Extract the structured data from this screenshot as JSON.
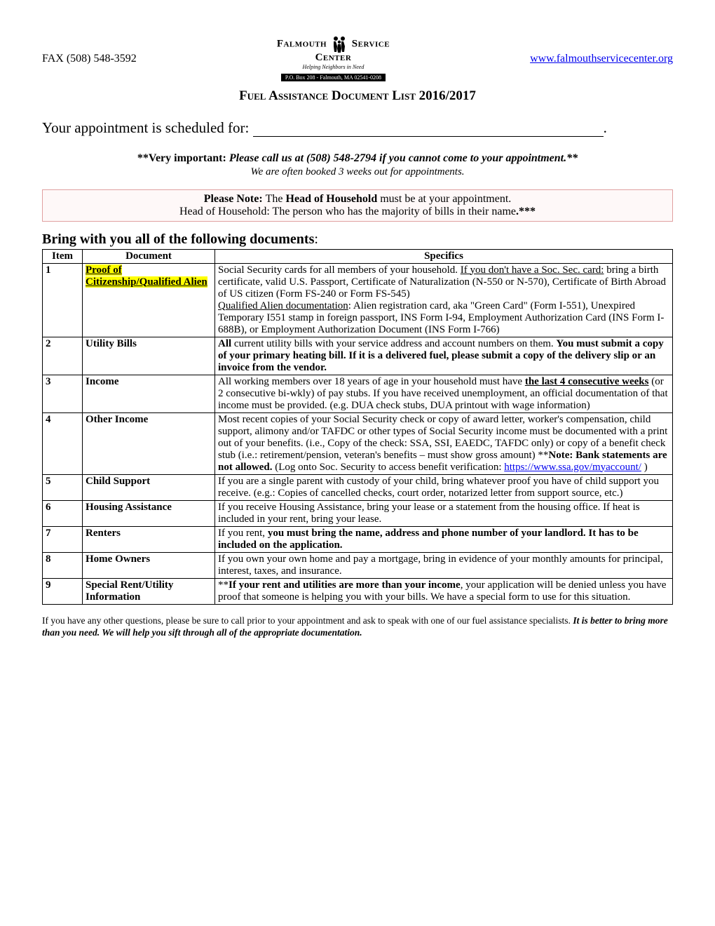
{
  "header": {
    "fax": "FAX (508) 548-3592",
    "website_url": "www.falmouthservicecenter.org",
    "logo_top": "Falmouth",
    "logo_right": "Service",
    "logo_center": "Center",
    "logo_tagline": "Helping Neighbors in Need",
    "logo_address": "P.O. Box 208 - Falmouth, MA 02541-0208"
  },
  "title": "Fuel Assistance Document List 2016/2017",
  "appointment": {
    "label": "Your appointment is scheduled for: "
  },
  "important": {
    "prefix": "**Very important:",
    "body": "  Please call us at (508) 548-2794 if you cannot come to your appointment.**",
    "sub": "We are often booked 3 weeks out for appointments."
  },
  "note_box": {
    "line1_a": "Please Note: ",
    "line1_b": "The ",
    "line1_c": "Head of Household",
    "line1_d": " must be at your appointment.",
    "line2_a": "Head of Household:  The person who has the majority of bills in their name",
    "line2_b": ".***"
  },
  "section_heading": "Bring with you all of the following documents",
  "table": {
    "columns": [
      "Item",
      "Document",
      "Specifics"
    ],
    "rows": [
      {
        "item": "1",
        "doc_html": "<span class='hl'>Proof of Citizenship/Qualified Alien</span>",
        "spec_html": "Social Security cards for all members of your household. <span class='u'>If you don't have a Soc. Sec. card:</span> bring a birth certificate, valid U.S. Passport, Certificate of Naturalization (N-550 or N-570), Certificate of Birth Abroad of US citizen (Form FS-240 or Form FS-545)<br><span class='u'>Qualified Alien documentation</span>: Alien registration card, aka \"Green Card\" (Form I-551), Unexpired Temporary I551 stamp in foreign passport, INS Form I-94, Employment Authorization Card (INS Form I-688B), or Employment Authorization Document (INS Form I-766)"
      },
      {
        "item": "2",
        "doc_html": "Utility Bills",
        "spec_html": "<span class='b'>All</span> current utility bills with your service address and account numbers on them. <span class='b'>You must submit a copy of your primary heating bill.  If it is a delivered fuel, please submit a copy of the delivery slip or an invoice from the vendor.</span>"
      },
      {
        "item": "3",
        "doc_html": "Income",
        "spec_html": "All working members over 18 years of age in your household must have <span class='b u'>the last 4 consecutive weeks</span> (or 2 consecutive bi-wkly) of pay stubs. If you have received unemployment, an official documentation of that income must be provided. (e.g. DUA check stubs, DUA printout with wage information)"
      },
      {
        "item": "4",
        "doc_html": "Other Income",
        "spec_html": "Most recent copies of your Social Security check or copy of award letter, worker's compensation, child support, alimony and/or TAFDC or other types of Social Security income must be documented with a print out of your benefits.  (i.e., Copy of the check:  SSA, SSI, EAEDC, TAFDC only) or copy of a benefit check stub (i.e.: retirement/pension, veteran's benefits &ndash; must show gross amount) **<span class='b'>Note:  Bank statements are not allowed.</span>  (Log onto Soc. Security to access benefit verification:  <a class='ssa' data-name='ssa-link' data-interactable='true'>https://www.ssa.gov/myaccount/</a> )"
      },
      {
        "item": "5",
        "doc_html": "Child Support",
        "spec_html": "If you are a single parent with custody of your child, bring whatever proof you have of child support you receive. (e.g.: Copies of cancelled checks, court order, notarized letter from support source, etc.)"
      },
      {
        "item": "6",
        "doc_html": "Housing Assistance",
        "spec_html": "If you receive Housing Assistance, bring your lease or a statement from the housing office. If heat is included in your rent, bring your lease."
      },
      {
        "item": "7",
        "doc_html": "Renters",
        "spec_html": "If you rent, <span class='b'>you must bring the name, address and phone number of your landlord.  It has to be included on the application.</span>"
      },
      {
        "item": "8",
        "doc_html": "Home Owners",
        "spec_html": "If you own your own home and pay a mortgage, bring in evidence of your monthly amounts for principal, interest, taxes, and insurance."
      },
      {
        "item": "9",
        "doc_html": "Special Rent/Utility Information",
        "spec_html": "**<span class='b'>If your rent and utilities are more than your income</span>, your application will be denied unless you have proof that someone is helping you with your bills. We have a special form to use for this situation."
      }
    ]
  },
  "footnote": {
    "a": "If you have any other questions, please be sure to call prior to your appointment and ask to speak with one of our fuel assistance specialists. ",
    "b": "It is better to bring more than you need. We will help you sift through all of the appropriate documentation."
  },
  "colors": {
    "highlight": "#ffff00",
    "link": "#0000ee",
    "border": "#000000",
    "notebox_border": "#e0a0a0",
    "notebox_bg": "#fef8f8",
    "text": "#000000",
    "bg": "#ffffff"
  }
}
